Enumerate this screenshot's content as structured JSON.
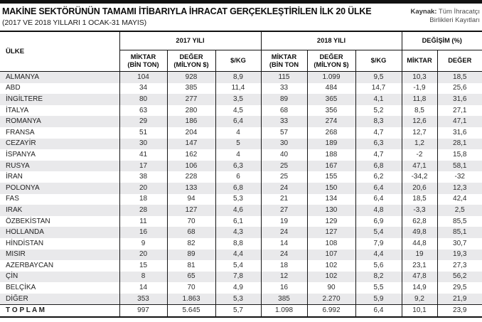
{
  "header": {
    "title": "MAKİNE SEKTÖRÜNÜN TAMAMI İTİBARIYLA İHRACAT GERÇEKLEŞTİRİLEN İLK 20 ÜLKE",
    "subtitle": "(2017 VE 2018 YILLARI 1 OCAK-31 MAYIS)",
    "source_label": "Kaynak:",
    "source_text": "Tüm İhracatçı Birlikleri Kayıtları"
  },
  "table": {
    "country_header": "ÜLKE",
    "groups": [
      {
        "label": "2017 YILI",
        "span": 3
      },
      {
        "label": "2018 YILI",
        "span": 3
      },
      {
        "label": "DEĞİŞİM (%)",
        "span": 2
      }
    ],
    "subheaders": [
      "MİKTAR\n(BİN TON)",
      "DEĞER\n(MİLYON $)",
      "$/KG",
      "MİKTAR\n(BİN TON",
      "DEĞER\n(MİLYON $)",
      "$/KG",
      "MİKTAR",
      "DEĞER"
    ],
    "rows": [
      {
        "country": "ALMANYA",
        "values": [
          "104",
          "928",
          "8,9",
          "115",
          "1.099",
          "9,5",
          "10,3",
          "18,5"
        ]
      },
      {
        "country": "ABD",
        "values": [
          "34",
          "385",
          "11,4",
          "33",
          "484",
          "14,7",
          "-1,9",
          "25,6"
        ]
      },
      {
        "country": "İNGİLTERE",
        "values": [
          "80",
          "277",
          "3,5",
          "89",
          "365",
          "4,1",
          "11,8",
          "31,6"
        ]
      },
      {
        "country": "İTALYA",
        "values": [
          "63",
          "280",
          "4,5",
          "68",
          "356",
          "5,2",
          "8,5",
          "27,1"
        ]
      },
      {
        "country": "ROMANYA",
        "values": [
          "29",
          "186",
          "6,4",
          "33",
          "274",
          "8,3",
          "12,6",
          "47,1"
        ]
      },
      {
        "country": "FRANSA",
        "values": [
          "51",
          "204",
          "4",
          "57",
          "268",
          "4,7",
          "12,7",
          "31,6"
        ]
      },
      {
        "country": "CEZAYİR",
        "values": [
          "30",
          "147",
          "5",
          "30",
          "189",
          "6,3",
          "1,2",
          "28,1"
        ]
      },
      {
        "country": "İSPANYA",
        "values": [
          "41",
          "162",
          "4",
          "40",
          "188",
          "4,7",
          "-2",
          "15,8"
        ]
      },
      {
        "country": "RUSYA",
        "values": [
          "17",
          "106",
          "6,3",
          "25",
          "167",
          "6,8",
          "47,1",
          "58,1"
        ]
      },
      {
        "country": "İRAN",
        "values": [
          "38",
          "228",
          "6",
          "25",
          "155",
          "6,2",
          "-34,2",
          "-32"
        ]
      },
      {
        "country": "POLONYA",
        "values": [
          "20",
          "133",
          "6,8",
          "24",
          "150",
          "6,4",
          "20,6",
          "12,3"
        ]
      },
      {
        "country": "FAS",
        "values": [
          "18",
          "94",
          "5,3",
          "21",
          "134",
          "6,4",
          "18,5",
          "42,4"
        ]
      },
      {
        "country": "IRAK",
        "values": [
          "28",
          "127",
          "4,6",
          "27",
          "130",
          "4,8",
          "-3,3",
          "2,5"
        ]
      },
      {
        "country": "ÖZBEKİSTAN",
        "values": [
          "11",
          "70",
          "6,1",
          "19",
          "129",
          "6,9",
          "62,8",
          "85,5"
        ]
      },
      {
        "country": "HOLLANDA",
        "values": [
          "16",
          "68",
          "4,3",
          "24",
          "127",
          "5,4",
          "49,8",
          "85,1"
        ]
      },
      {
        "country": "HİNDİSTAN",
        "values": [
          "9",
          "82",
          "8,8",
          "14",
          "108",
          "7,9",
          "44,8",
          "30,7"
        ]
      },
      {
        "country": "MISIR",
        "values": [
          "20",
          "89",
          "4,4",
          "24",
          "107",
          "4,4",
          "19",
          "19,3"
        ]
      },
      {
        "country": "AZERBAYCAN",
        "values": [
          "15",
          "81",
          "5,4",
          "18",
          "102",
          "5,6",
          "23,1",
          "27,3"
        ]
      },
      {
        "country": "ÇİN",
        "values": [
          "8",
          "65",
          "7,8",
          "12",
          "102",
          "8,2",
          "47,8",
          "56,2"
        ]
      },
      {
        "country": "BELÇİKA",
        "values": [
          "14",
          "70",
          "4,9",
          "16",
          "90",
          "5,5",
          "14,9",
          "29,5"
        ]
      },
      {
        "country": "DİĞER",
        "values": [
          "353",
          "1.863",
          "5,3",
          "385",
          "2.270",
          "5,9",
          "9,2",
          "21,9"
        ]
      }
    ],
    "total_row": {
      "country": "T O P L A M",
      "values": [
        "997",
        "5.645",
        "5,7",
        "1.098",
        "6.992",
        "6,4",
        "10,1",
        "23,9"
      ]
    }
  },
  "colors": {
    "stripe": "#e9e9eb",
    "rule": "#111111",
    "top_bar": "#121212"
  }
}
